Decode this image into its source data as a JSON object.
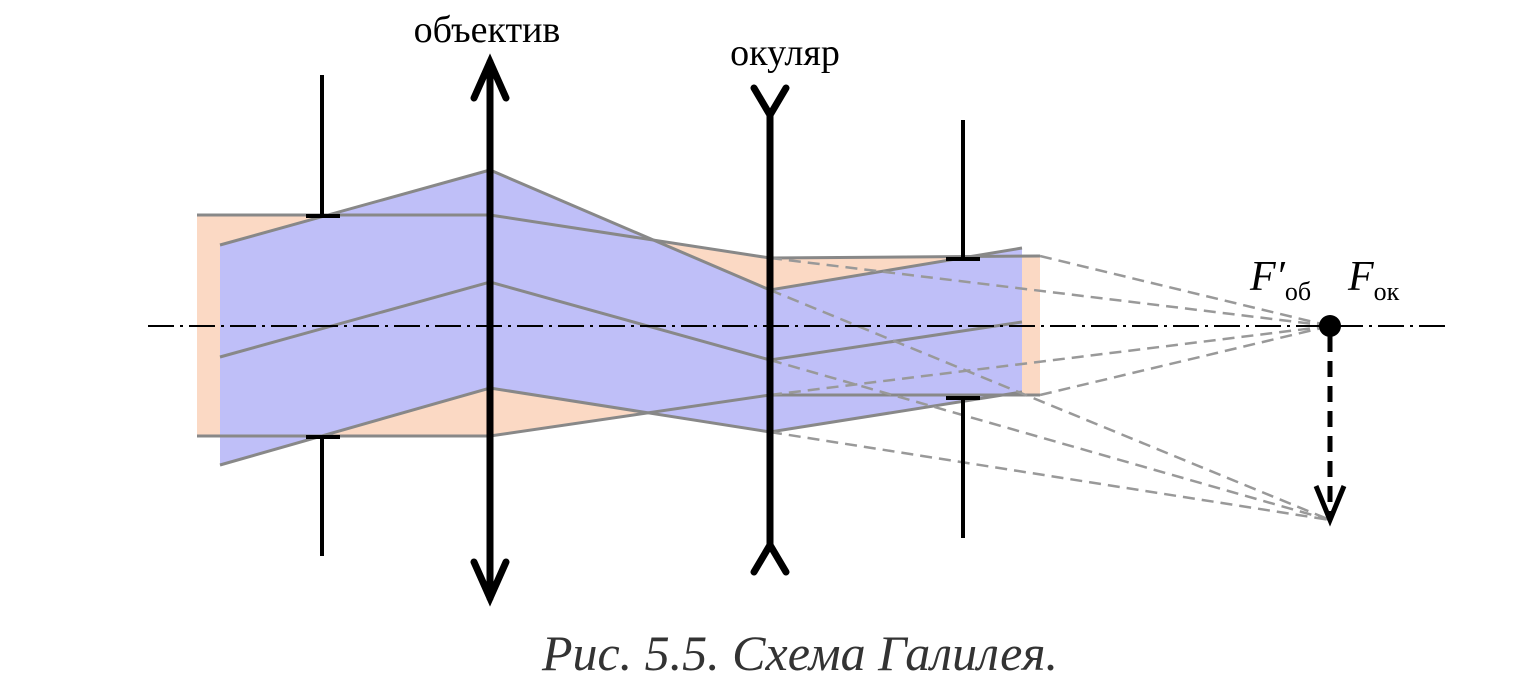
{
  "labels": {
    "objective": "объектив",
    "eyepiece": "окуляр"
  },
  "foci": [
    {
      "symbol": "F′",
      "subscript": "об"
    },
    {
      "symbol": "F",
      "subscript": "ок"
    }
  ],
  "caption": "Рис. 5.5. Схема Галилея."
}
